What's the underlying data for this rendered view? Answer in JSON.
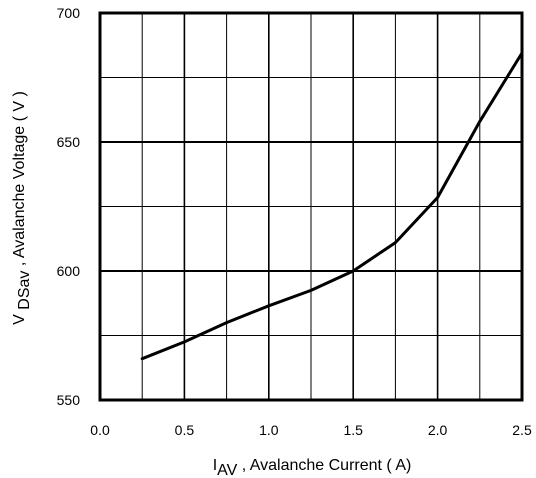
{
  "chart_data": {
    "type": "line",
    "title": "",
    "xlabel": {
      "main": "I",
      "sub": "AV",
      "rest": " , Avalanche Current ( A)"
    },
    "ylabel": {
      "main": "V ",
      "sub": "DSav",
      "rest": " , Avalanche Voltage ( V )"
    },
    "xlim": [
      0.0,
      2.5
    ],
    "ylim": [
      550,
      700
    ],
    "x_ticks": [
      0.0,
      0.5,
      1.0,
      1.5,
      2.0,
      2.5
    ],
    "x_tick_labels": [
      "0.0",
      "0.5",
      "1.0",
      "1.5",
      "2.0",
      "2.5"
    ],
    "y_ticks": [
      550,
      600,
      650,
      700
    ],
    "y_tick_labels": [
      "550",
      "600",
      "650",
      "700"
    ],
    "x_grid_step": 0.25,
    "y_grid_step": 25,
    "grid": true,
    "series": [
      {
        "x": [
          0.25,
          0.5,
          0.75,
          1.0,
          1.25,
          1.5,
          1.75,
          2.0,
          2.25,
          2.5
        ],
        "y": [
          566,
          572.5,
          580,
          586.5,
          592.5,
          600,
          611,
          628.5,
          658,
          684.5
        ]
      }
    ],
    "line_color": "#000000"
  }
}
